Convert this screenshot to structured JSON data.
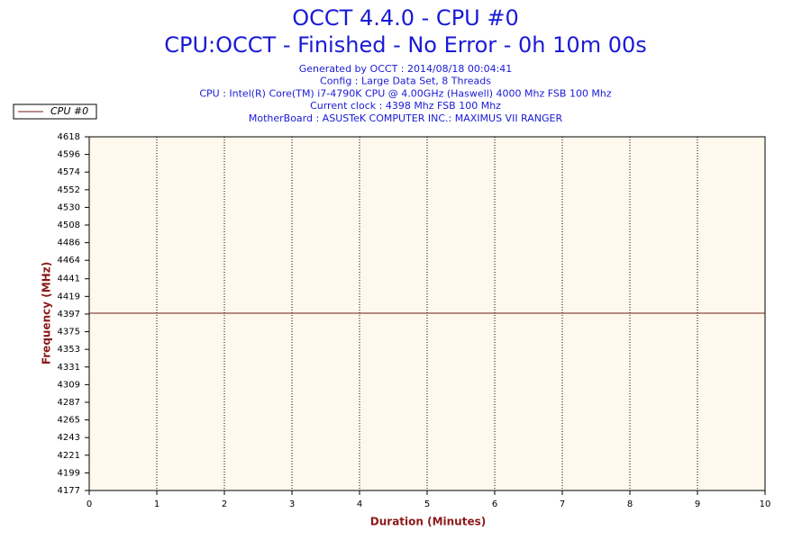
{
  "chart_data": {
    "type": "line",
    "title": "OCCT 4.4.0 - CPU #0",
    "subtitle": "CPU:OCCT - Finished - No Error - 0h 10m 00s",
    "info": [
      "Generated by OCCT : 2014/08/18 00:04:41",
      "Config : Large Data Set, 8 Threads",
      "CPU : Intel(R) Core(TM) i7-4790K CPU @ 4.00GHz (Haswell) 4000 Mhz FSB 100 Mhz",
      "Current clock : 4398 Mhz FSB 100 Mhz",
      "MotherBoard : ASUSTeK COMPUTER INC.: MAXIMUS VII RANGER"
    ],
    "x_label": "Duration (Minutes)",
    "y_label": "Frequency (MHz)",
    "x": [
      0,
      1,
      2,
      3,
      4,
      5,
      6,
      7,
      8,
      9,
      10
    ],
    "series": [
      {
        "name": "CPU #0",
        "color": "#6b1a1a",
        "values": [
          4398,
          4398,
          4398,
          4398,
          4398,
          4398,
          4398,
          4398,
          4398,
          4398,
          4398
        ]
      }
    ],
    "xlim": [
      0,
      10
    ],
    "xticks": [
      0,
      1,
      2,
      3,
      4,
      5,
      6,
      7,
      8,
      9,
      10
    ],
    "ylim": [
      4177,
      4618
    ],
    "yticks": [
      4177,
      4199,
      4221,
      4243,
      4265,
      4287,
      4309,
      4331,
      4353,
      4375,
      4397,
      4419,
      4441,
      4464,
      4486,
      4508,
      4530,
      4552,
      4574,
      4596,
      4618
    ],
    "grid": "x",
    "legend": "top-left"
  }
}
